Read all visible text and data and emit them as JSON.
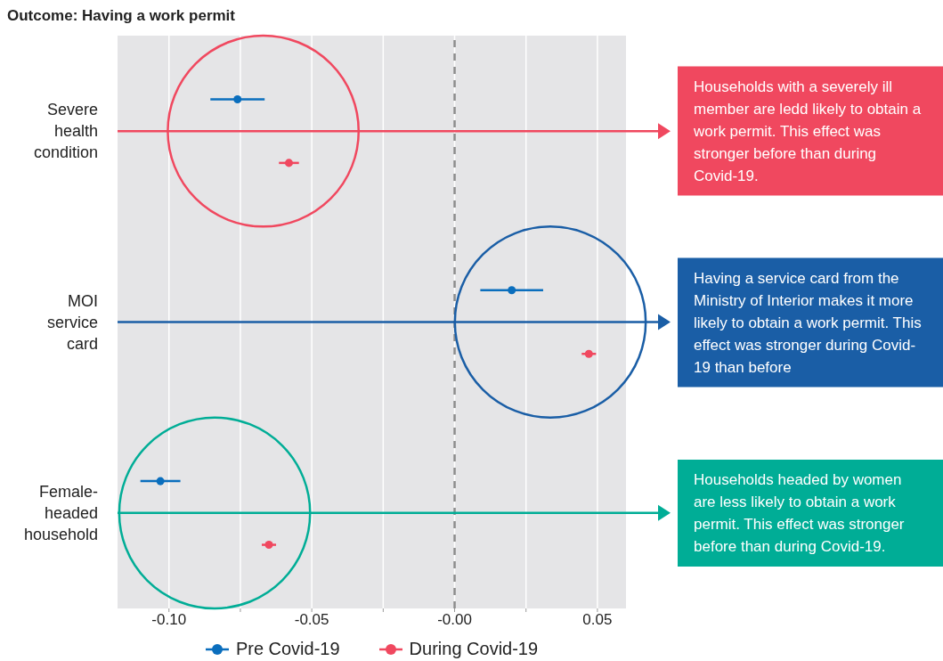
{
  "chart_data": {
    "type": "scatter",
    "orientation": "horizontal",
    "title": "Outcome: Having a work permit",
    "categories": [
      "Severe health condition",
      "MOI service card",
      "Female-headed household"
    ],
    "series": [
      {
        "name": "Pre Covid-19",
        "color": "#0a6ebd",
        "values": [
          -0.076,
          0.02,
          -0.103
        ],
        "errors": [
          0.0095,
          0.011,
          0.007
        ]
      },
      {
        "name": "During Covid-19",
        "color": "#f0485f",
        "values": [
          -0.058,
          0.047,
          -0.065
        ],
        "errors": [
          0.0035,
          0.0025,
          0.0025
        ]
      }
    ],
    "xlim": [
      -0.118,
      0.06
    ],
    "xticks": [
      {
        "value": -0.1,
        "label": "-0.10"
      },
      {
        "value": -0.075,
        "label": null
      },
      {
        "value": -0.05,
        "label": "-0.05"
      },
      {
        "value": -0.025,
        "label": null
      },
      {
        "value": 0,
        "label": "-0.00"
      },
      {
        "value": 0.025,
        "label": null
      },
      {
        "value": 0.05,
        "label": "0.05"
      }
    ],
    "ref_lines": [
      {
        "axis": "x",
        "value": 0,
        "color": "#8c8c8c",
        "line_style": "dashed"
      }
    ],
    "annotations": [
      "Households with a severely ill member are ledd likely to obtain a work permit. This effect was stronger before than during Covid-19.",
      "Having a service card from the Ministry of Interior makes it more likely to obtain a work permit. This effect was stronger during Covid-19 than before",
      "Households headed by women are less likely to obtain a work permit. This effect was stronger before than during Covid-19."
    ],
    "grid": "x",
    "legend": "bottom",
    "marker": "circle"
  }
}
